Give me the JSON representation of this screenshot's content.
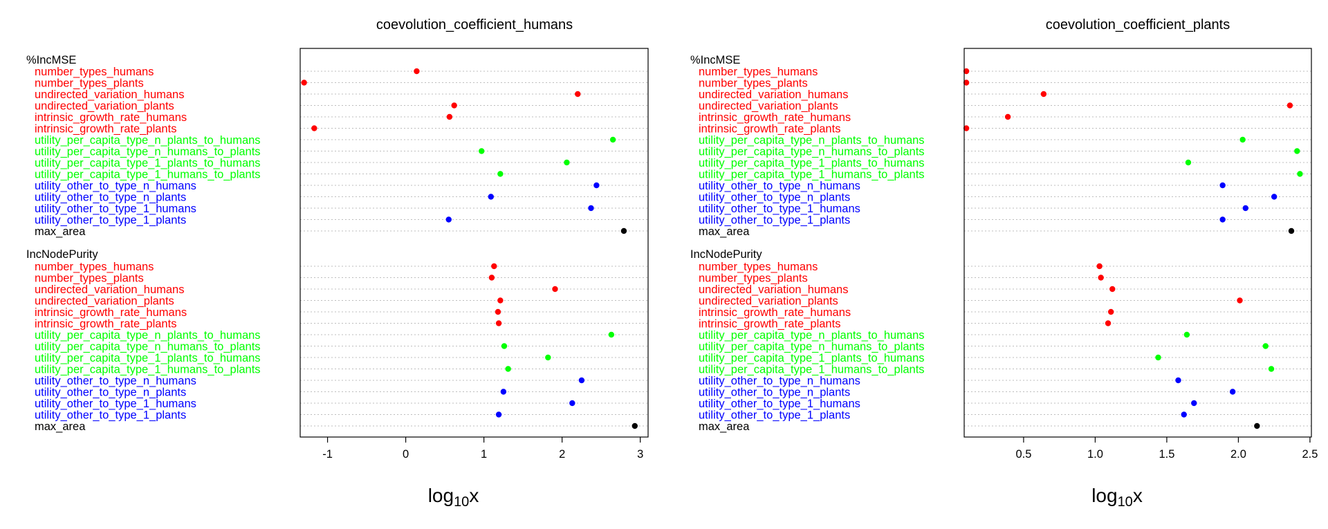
{
  "chart_data": [
    {
      "type": "dot",
      "title": "coevolution_coefficient_humans",
      "xlabel_base": "log",
      "xlabel_sub": "10",
      "xlabel_var": "x",
      "xlim": [
        -1.35,
        3.1
      ],
      "xticks": [
        -1,
        0,
        1,
        2,
        3
      ],
      "groups": [
        {
          "label": "%IncMSE",
          "rows": [
            {
              "label": "number_types_humans",
              "value": 0.14,
              "color": "#ff0000"
            },
            {
              "label": "number_types_plants",
              "value": -1.3,
              "color": "#ff0000"
            },
            {
              "label": "undirected_variation_humans",
              "value": 2.2,
              "color": "#ff0000"
            },
            {
              "label": "undirected_variation_plants",
              "value": 0.62,
              "color": "#ff0000"
            },
            {
              "label": "intrinsic_growth_rate_humans",
              "value": 0.56,
              "color": "#ff0000"
            },
            {
              "label": "intrinsic_growth_rate_plants",
              "value": -1.17,
              "color": "#ff0000"
            },
            {
              "label": "utility_per_capita_type_n_plants_to_humans",
              "value": 2.65,
              "color": "#00ff00"
            },
            {
              "label": "utility_per_capita_type_n_humans_to_plants",
              "value": 0.97,
              "color": "#00ff00"
            },
            {
              "label": "utility_per_capita_type_1_plants_to_humans",
              "value": 2.06,
              "color": "#00ff00"
            },
            {
              "label": "utility_per_capita_type_1_humans_to_plants",
              "value": 1.21,
              "color": "#00ff00"
            },
            {
              "label": "utility_other_to_type_n_humans",
              "value": 2.44,
              "color": "#0000ff"
            },
            {
              "label": "utility_other_to_type_n_plants",
              "value": 1.09,
              "color": "#0000ff"
            },
            {
              "label": "utility_other_to_type_1_humans",
              "value": 2.37,
              "color": "#0000ff"
            },
            {
              "label": "utility_other_to_type_1_plants",
              "value": 0.55,
              "color": "#0000ff"
            },
            {
              "label": "max_area",
              "value": 2.79,
              "color": "#000000"
            }
          ]
        },
        {
          "label": "IncNodePurity",
          "rows": [
            {
              "label": "number_types_humans",
              "value": 1.13,
              "color": "#ff0000"
            },
            {
              "label": "number_types_plants",
              "value": 1.1,
              "color": "#ff0000"
            },
            {
              "label": "undirected_variation_humans",
              "value": 1.91,
              "color": "#ff0000"
            },
            {
              "label": "undirected_variation_plants",
              "value": 1.21,
              "color": "#ff0000"
            },
            {
              "label": "intrinsic_growth_rate_humans",
              "value": 1.18,
              "color": "#ff0000"
            },
            {
              "label": "intrinsic_growth_rate_plants",
              "value": 1.19,
              "color": "#ff0000"
            },
            {
              "label": "utility_per_capita_type_n_plants_to_humans",
              "value": 2.63,
              "color": "#00ff00"
            },
            {
              "label": "utility_per_capita_type_n_humans_to_plants",
              "value": 1.26,
              "color": "#00ff00"
            },
            {
              "label": "utility_per_capita_type_1_plants_to_humans",
              "value": 1.82,
              "color": "#00ff00"
            },
            {
              "label": "utility_per_capita_type_1_humans_to_plants",
              "value": 1.31,
              "color": "#00ff00"
            },
            {
              "label": "utility_other_to_type_n_humans",
              "value": 2.25,
              "color": "#0000ff"
            },
            {
              "label": "utility_other_to_type_n_plants",
              "value": 1.25,
              "color": "#0000ff"
            },
            {
              "label": "utility_other_to_type_1_humans",
              "value": 2.13,
              "color": "#0000ff"
            },
            {
              "label": "utility_other_to_type_1_plants",
              "value": 1.19,
              "color": "#0000ff"
            },
            {
              "label": "max_area",
              "value": 2.93,
              "color": "#000000"
            }
          ]
        }
      ]
    },
    {
      "type": "dot",
      "title": "coevolution_coefficient_plants",
      "xlabel_base": "log",
      "xlabel_sub": "10",
      "xlabel_var": "x",
      "xlim": [
        0.085,
        2.51
      ],
      "xticks": [
        0.5,
        1.0,
        1.5,
        2.0,
        2.5
      ],
      "xtick_labels": [
        "0.5",
        "1.0",
        "1.5",
        "2.0",
        "2.5"
      ],
      "groups": [
        {
          "label": "%IncMSE",
          "rows": [
            {
              "label": "number_types_humans",
              "value": 0.1,
              "color": "#ff0000"
            },
            {
              "label": "number_types_plants",
              "value": 0.1,
              "color": "#ff0000"
            },
            {
              "label": "undirected_variation_humans",
              "value": 0.64,
              "color": "#ff0000"
            },
            {
              "label": "undirected_variation_plants",
              "value": 2.36,
              "color": "#ff0000"
            },
            {
              "label": "intrinsic_growth_rate_humans",
              "value": 0.39,
              "color": "#ff0000"
            },
            {
              "label": "intrinsic_growth_rate_plants",
              "value": 0.1,
              "color": "#ff0000"
            },
            {
              "label": "utility_per_capita_type_n_plants_to_humans",
              "value": 2.03,
              "color": "#00ff00"
            },
            {
              "label": "utility_per_capita_type_n_humans_to_plants",
              "value": 2.41,
              "color": "#00ff00"
            },
            {
              "label": "utility_per_capita_type_1_plants_to_humans",
              "value": 1.65,
              "color": "#00ff00"
            },
            {
              "label": "utility_per_capita_type_1_humans_to_plants",
              "value": 2.43,
              "color": "#00ff00"
            },
            {
              "label": "utility_other_to_type_n_humans",
              "value": 1.89,
              "color": "#0000ff"
            },
            {
              "label": "utility_other_to_type_n_plants",
              "value": 2.25,
              "color": "#0000ff"
            },
            {
              "label": "utility_other_to_type_1_humans",
              "value": 2.05,
              "color": "#0000ff"
            },
            {
              "label": "utility_other_to_type_1_plants",
              "value": 1.89,
              "color": "#0000ff"
            },
            {
              "label": "max_area",
              "value": 2.37,
              "color": "#000000"
            }
          ]
        },
        {
          "label": "IncNodePurity",
          "rows": [
            {
              "label": "number_types_humans",
              "value": 1.03,
              "color": "#ff0000"
            },
            {
              "label": "number_types_plants",
              "value": 1.04,
              "color": "#ff0000"
            },
            {
              "label": "undirected_variation_humans",
              "value": 1.12,
              "color": "#ff0000"
            },
            {
              "label": "undirected_variation_plants",
              "value": 2.01,
              "color": "#ff0000"
            },
            {
              "label": "intrinsic_growth_rate_humans",
              "value": 1.11,
              "color": "#ff0000"
            },
            {
              "label": "intrinsic_growth_rate_plants",
              "value": 1.09,
              "color": "#ff0000"
            },
            {
              "label": "utility_per_capita_type_n_plants_to_humans",
              "value": 1.64,
              "color": "#00ff00"
            },
            {
              "label": "utility_per_capita_type_n_humans_to_plants",
              "value": 2.19,
              "color": "#00ff00"
            },
            {
              "label": "utility_per_capita_type_1_plants_to_humans",
              "value": 1.44,
              "color": "#00ff00"
            },
            {
              "label": "utility_per_capita_type_1_humans_to_plants",
              "value": 2.23,
              "color": "#00ff00"
            },
            {
              "label": "utility_other_to_type_n_humans",
              "value": 1.58,
              "color": "#0000ff"
            },
            {
              "label": "utility_other_to_type_n_plants",
              "value": 1.96,
              "color": "#0000ff"
            },
            {
              "label": "utility_other_to_type_1_humans",
              "value": 1.69,
              "color": "#0000ff"
            },
            {
              "label": "utility_other_to_type_1_plants",
              "value": 1.62,
              "color": "#0000ff"
            },
            {
              "label": "max_area",
              "value": 2.13,
              "color": "#000000"
            }
          ]
        }
      ]
    }
  ]
}
